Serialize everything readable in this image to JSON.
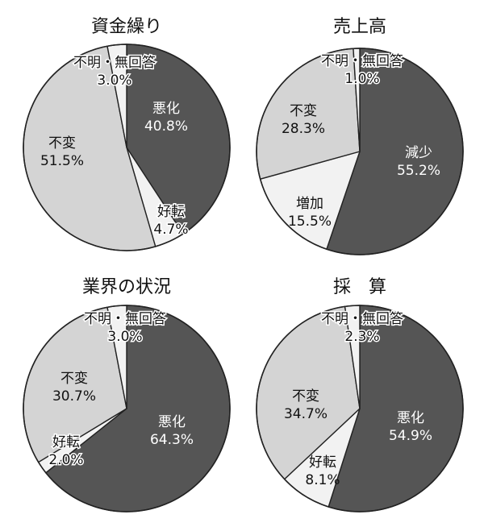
{
  "chart_data": [
    {
      "type": "pie",
      "title": "資金繰り",
      "slices": [
        {
          "label": "悪化",
          "value_label": "40.8%",
          "value": 40.8,
          "color": "#555555",
          "text_color": "#ffffff"
        },
        {
          "label": "好転",
          "value_label": "4.7%",
          "value": 4.7,
          "color": "#f2f2f2",
          "text_color": "#111111"
        },
        {
          "label": "不変",
          "value_label": "51.5%",
          "value": 51.5,
          "color": "#d4d4d4",
          "text_color": "#111111"
        },
        {
          "label": "不明・無回答",
          "value_label": "3.0%",
          "value": 3.0,
          "color": "#f2f2f2",
          "text_color": "#111111"
        }
      ]
    },
    {
      "type": "pie",
      "title": "売上高",
      "slices": [
        {
          "label": "減少",
          "value_label": "55.2%",
          "value": 55.2,
          "color": "#555555",
          "text_color": "#ffffff"
        },
        {
          "label": "増加",
          "value_label": "15.5%",
          "value": 15.5,
          "color": "#f2f2f2",
          "text_color": "#111111"
        },
        {
          "label": "不変",
          "value_label": "28.3%",
          "value": 28.3,
          "color": "#d4d4d4",
          "text_color": "#111111"
        },
        {
          "label": "不明・無回答",
          "value_label": "1.0%",
          "value": 1.0,
          "color": "#f2f2f2",
          "text_color": "#111111"
        }
      ]
    },
    {
      "type": "pie",
      "title": "業界の状況",
      "slices": [
        {
          "label": "悪化",
          "value_label": "64.3%",
          "value": 64.3,
          "color": "#555555",
          "text_color": "#ffffff"
        },
        {
          "label": "好転",
          "value_label": "2.0%",
          "value": 2.0,
          "color": "#f2f2f2",
          "text_color": "#111111"
        },
        {
          "label": "不変",
          "value_label": "30.7%",
          "value": 30.7,
          "color": "#d4d4d4",
          "text_color": "#111111"
        },
        {
          "label": "不明・無回答",
          "value_label": "3.0%",
          "value": 3.0,
          "color": "#f2f2f2",
          "text_color": "#111111"
        }
      ]
    },
    {
      "type": "pie",
      "title": "採　算",
      "slices": [
        {
          "label": "悪化",
          "value_label": "54.9%",
          "value": 54.9,
          "color": "#555555",
          "text_color": "#ffffff"
        },
        {
          "label": "好転",
          "value_label": "8.1%",
          "value": 8.1,
          "color": "#f2f2f2",
          "text_color": "#111111"
        },
        {
          "label": "不変",
          "value_label": "34.7%",
          "value": 34.7,
          "color": "#d4d4d4",
          "text_color": "#111111"
        },
        {
          "label": "不明・無回答",
          "value_label": "2.3%",
          "value": 2.3,
          "color": "#f2f2f2",
          "text_color": "#111111"
        }
      ]
    }
  ]
}
